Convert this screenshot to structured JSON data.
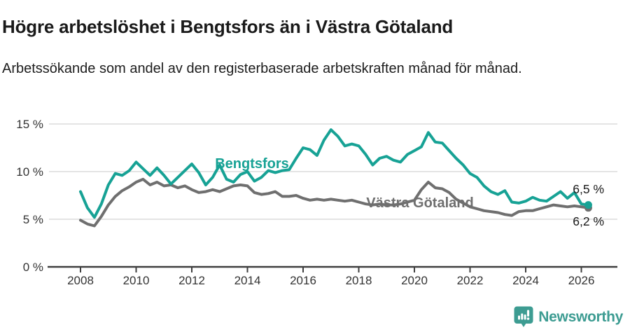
{
  "header": {
    "title": "Högre arbetslöshet i Bengtsfors än i Västra Götaland",
    "subtitle": "Arbetssökande som andel av den registerbaserade arbetskraften månad för månad."
  },
  "footer": {
    "brand": "Newsworthy",
    "logo_icon": "bar-chart-exclamation-pin-icon"
  },
  "colors": {
    "bengtsfors": "#17a295",
    "vastra_gotaland": "#6f6f6f",
    "axis": "#3f3f3f",
    "tick_text": "#333333",
    "gridline": "#dcdcdc",
    "value_text": "#1a1a1a",
    "brand": "#3d9c92"
  },
  "chart_data": {
    "type": "line",
    "title": "Högre arbetslöshet i Bengtsfors än i Västra Götaland",
    "xlabel": "",
    "ylabel": "",
    "grid": "horizontal",
    "legend_position": "inline-labels-on-lines",
    "x_unit": "year (decimal, monthly series sampled quarterly)",
    "xlim": [
      2006.9,
      2027.3
    ],
    "ylim": [
      0,
      15.5
    ],
    "x_ticks": [
      2008,
      2010,
      2012,
      2014,
      2016,
      2018,
      2020,
      2022,
      2024,
      2026
    ],
    "x_tick_labels": [
      "2008",
      "2010",
      "2012",
      "2014",
      "2016",
      "2018",
      "2020",
      "2022",
      "2024",
      "2026"
    ],
    "y_ticks": [
      0,
      5,
      10,
      15
    ],
    "y_tick_labels": [
      "0 %",
      "5 %",
      "10 %",
      "15 %"
    ],
    "series": [
      {
        "name": "Västra Götaland",
        "color": "#6f6f6f",
        "end_label": "6,2 %",
        "end_value": 6.2,
        "points": [
          [
            2008.0,
            4.9
          ],
          [
            2008.25,
            4.5
          ],
          [
            2008.5,
            4.3
          ],
          [
            2008.75,
            5.3
          ],
          [
            2009.0,
            6.5
          ],
          [
            2009.25,
            7.4
          ],
          [
            2009.5,
            8.0
          ],
          [
            2009.75,
            8.4
          ],
          [
            2010.0,
            8.9
          ],
          [
            2010.25,
            9.2
          ],
          [
            2010.5,
            8.6
          ],
          [
            2010.75,
            8.9
          ],
          [
            2011.0,
            8.5
          ],
          [
            2011.25,
            8.6
          ],
          [
            2011.5,
            8.3
          ],
          [
            2011.75,
            8.5
          ],
          [
            2012.0,
            8.1
          ],
          [
            2012.25,
            7.8
          ],
          [
            2012.5,
            7.9
          ],
          [
            2012.75,
            8.1
          ],
          [
            2013.0,
            7.9
          ],
          [
            2013.25,
            8.2
          ],
          [
            2013.5,
            8.5
          ],
          [
            2013.75,
            8.6
          ],
          [
            2014.0,
            8.5
          ],
          [
            2014.25,
            7.8
          ],
          [
            2014.5,
            7.6
          ],
          [
            2014.75,
            7.7
          ],
          [
            2015.0,
            7.9
          ],
          [
            2015.25,
            7.4
          ],
          [
            2015.5,
            7.4
          ],
          [
            2015.75,
            7.5
          ],
          [
            2016.0,
            7.2
          ],
          [
            2016.25,
            7.0
          ],
          [
            2016.5,
            7.1
          ],
          [
            2016.75,
            7.0
          ],
          [
            2017.0,
            7.1
          ],
          [
            2017.25,
            7.0
          ],
          [
            2017.5,
            6.9
          ],
          [
            2017.75,
            7.0
          ],
          [
            2018.0,
            6.8
          ],
          [
            2018.25,
            6.6
          ],
          [
            2018.5,
            6.5
          ],
          [
            2018.75,
            6.6
          ],
          [
            2019.0,
            6.5
          ],
          [
            2019.25,
            6.5
          ],
          [
            2019.5,
            6.6
          ],
          [
            2019.75,
            6.8
          ],
          [
            2020.0,
            7.0
          ],
          [
            2020.25,
            8.1
          ],
          [
            2020.5,
            8.9
          ],
          [
            2020.75,
            8.3
          ],
          [
            2021.0,
            8.2
          ],
          [
            2021.25,
            7.8
          ],
          [
            2021.5,
            7.1
          ],
          [
            2021.75,
            6.7
          ],
          [
            2022.0,
            6.3
          ],
          [
            2022.25,
            6.1
          ],
          [
            2022.5,
            5.9
          ],
          [
            2022.75,
            5.8
          ],
          [
            2023.0,
            5.7
          ],
          [
            2023.25,
            5.5
          ],
          [
            2023.5,
            5.4
          ],
          [
            2023.75,
            5.8
          ],
          [
            2024.0,
            5.9
          ],
          [
            2024.25,
            5.9
          ],
          [
            2024.5,
            6.1
          ],
          [
            2024.75,
            6.3
          ],
          [
            2025.0,
            6.5
          ],
          [
            2025.25,
            6.4
          ],
          [
            2025.5,
            6.3
          ],
          [
            2025.75,
            6.4
          ],
          [
            2026.0,
            6.3
          ],
          [
            2026.25,
            6.2
          ]
        ]
      },
      {
        "name": "Bengtsfors",
        "color": "#17a295",
        "end_label": "6,5 %",
        "end_value": 6.5,
        "points": [
          [
            2008.0,
            7.9
          ],
          [
            2008.25,
            6.2
          ],
          [
            2008.5,
            5.2
          ],
          [
            2008.75,
            6.6
          ],
          [
            2009.0,
            8.6
          ],
          [
            2009.25,
            9.8
          ],
          [
            2009.5,
            9.6
          ],
          [
            2009.75,
            10.1
          ],
          [
            2010.0,
            11.0
          ],
          [
            2010.25,
            10.3
          ],
          [
            2010.5,
            9.6
          ],
          [
            2010.75,
            10.4
          ],
          [
            2011.0,
            9.6
          ],
          [
            2011.25,
            8.7
          ],
          [
            2011.5,
            9.4
          ],
          [
            2011.75,
            10.1
          ],
          [
            2012.0,
            10.8
          ],
          [
            2012.25,
            9.9
          ],
          [
            2012.5,
            8.6
          ],
          [
            2012.75,
            9.4
          ],
          [
            2013.0,
            10.7
          ],
          [
            2013.25,
            9.2
          ],
          [
            2013.5,
            8.9
          ],
          [
            2013.75,
            9.7
          ],
          [
            2014.0,
            10.0
          ],
          [
            2014.25,
            9.0
          ],
          [
            2014.5,
            9.4
          ],
          [
            2014.75,
            10.1
          ],
          [
            2015.0,
            9.9
          ],
          [
            2015.25,
            10.1
          ],
          [
            2015.5,
            10.2
          ],
          [
            2015.75,
            11.4
          ],
          [
            2016.0,
            12.5
          ],
          [
            2016.25,
            12.3
          ],
          [
            2016.5,
            11.7
          ],
          [
            2016.75,
            13.3
          ],
          [
            2017.0,
            14.4
          ],
          [
            2017.25,
            13.7
          ],
          [
            2017.5,
            12.7
          ],
          [
            2017.75,
            12.9
          ],
          [
            2018.0,
            12.7
          ],
          [
            2018.25,
            11.8
          ],
          [
            2018.5,
            10.7
          ],
          [
            2018.75,
            11.4
          ],
          [
            2019.0,
            11.6
          ],
          [
            2019.25,
            11.2
          ],
          [
            2019.5,
            11.0
          ],
          [
            2019.75,
            11.8
          ],
          [
            2020.0,
            12.2
          ],
          [
            2020.25,
            12.6
          ],
          [
            2020.5,
            14.1
          ],
          [
            2020.75,
            13.1
          ],
          [
            2021.0,
            13.0
          ],
          [
            2021.25,
            12.2
          ],
          [
            2021.5,
            11.4
          ],
          [
            2021.75,
            10.7
          ],
          [
            2022.0,
            9.8
          ],
          [
            2022.25,
            9.4
          ],
          [
            2022.5,
            8.5
          ],
          [
            2022.75,
            7.9
          ],
          [
            2023.0,
            7.6
          ],
          [
            2023.25,
            8.0
          ],
          [
            2023.5,
            6.8
          ],
          [
            2023.75,
            6.7
          ],
          [
            2024.0,
            6.9
          ],
          [
            2024.25,
            7.3
          ],
          [
            2024.5,
            7.0
          ],
          [
            2024.75,
            6.9
          ],
          [
            2025.0,
            7.4
          ],
          [
            2025.25,
            7.9
          ],
          [
            2025.5,
            7.2
          ],
          [
            2025.75,
            7.8
          ],
          [
            2026.0,
            6.6
          ],
          [
            2026.25,
            6.5
          ]
        ]
      }
    ]
  }
}
